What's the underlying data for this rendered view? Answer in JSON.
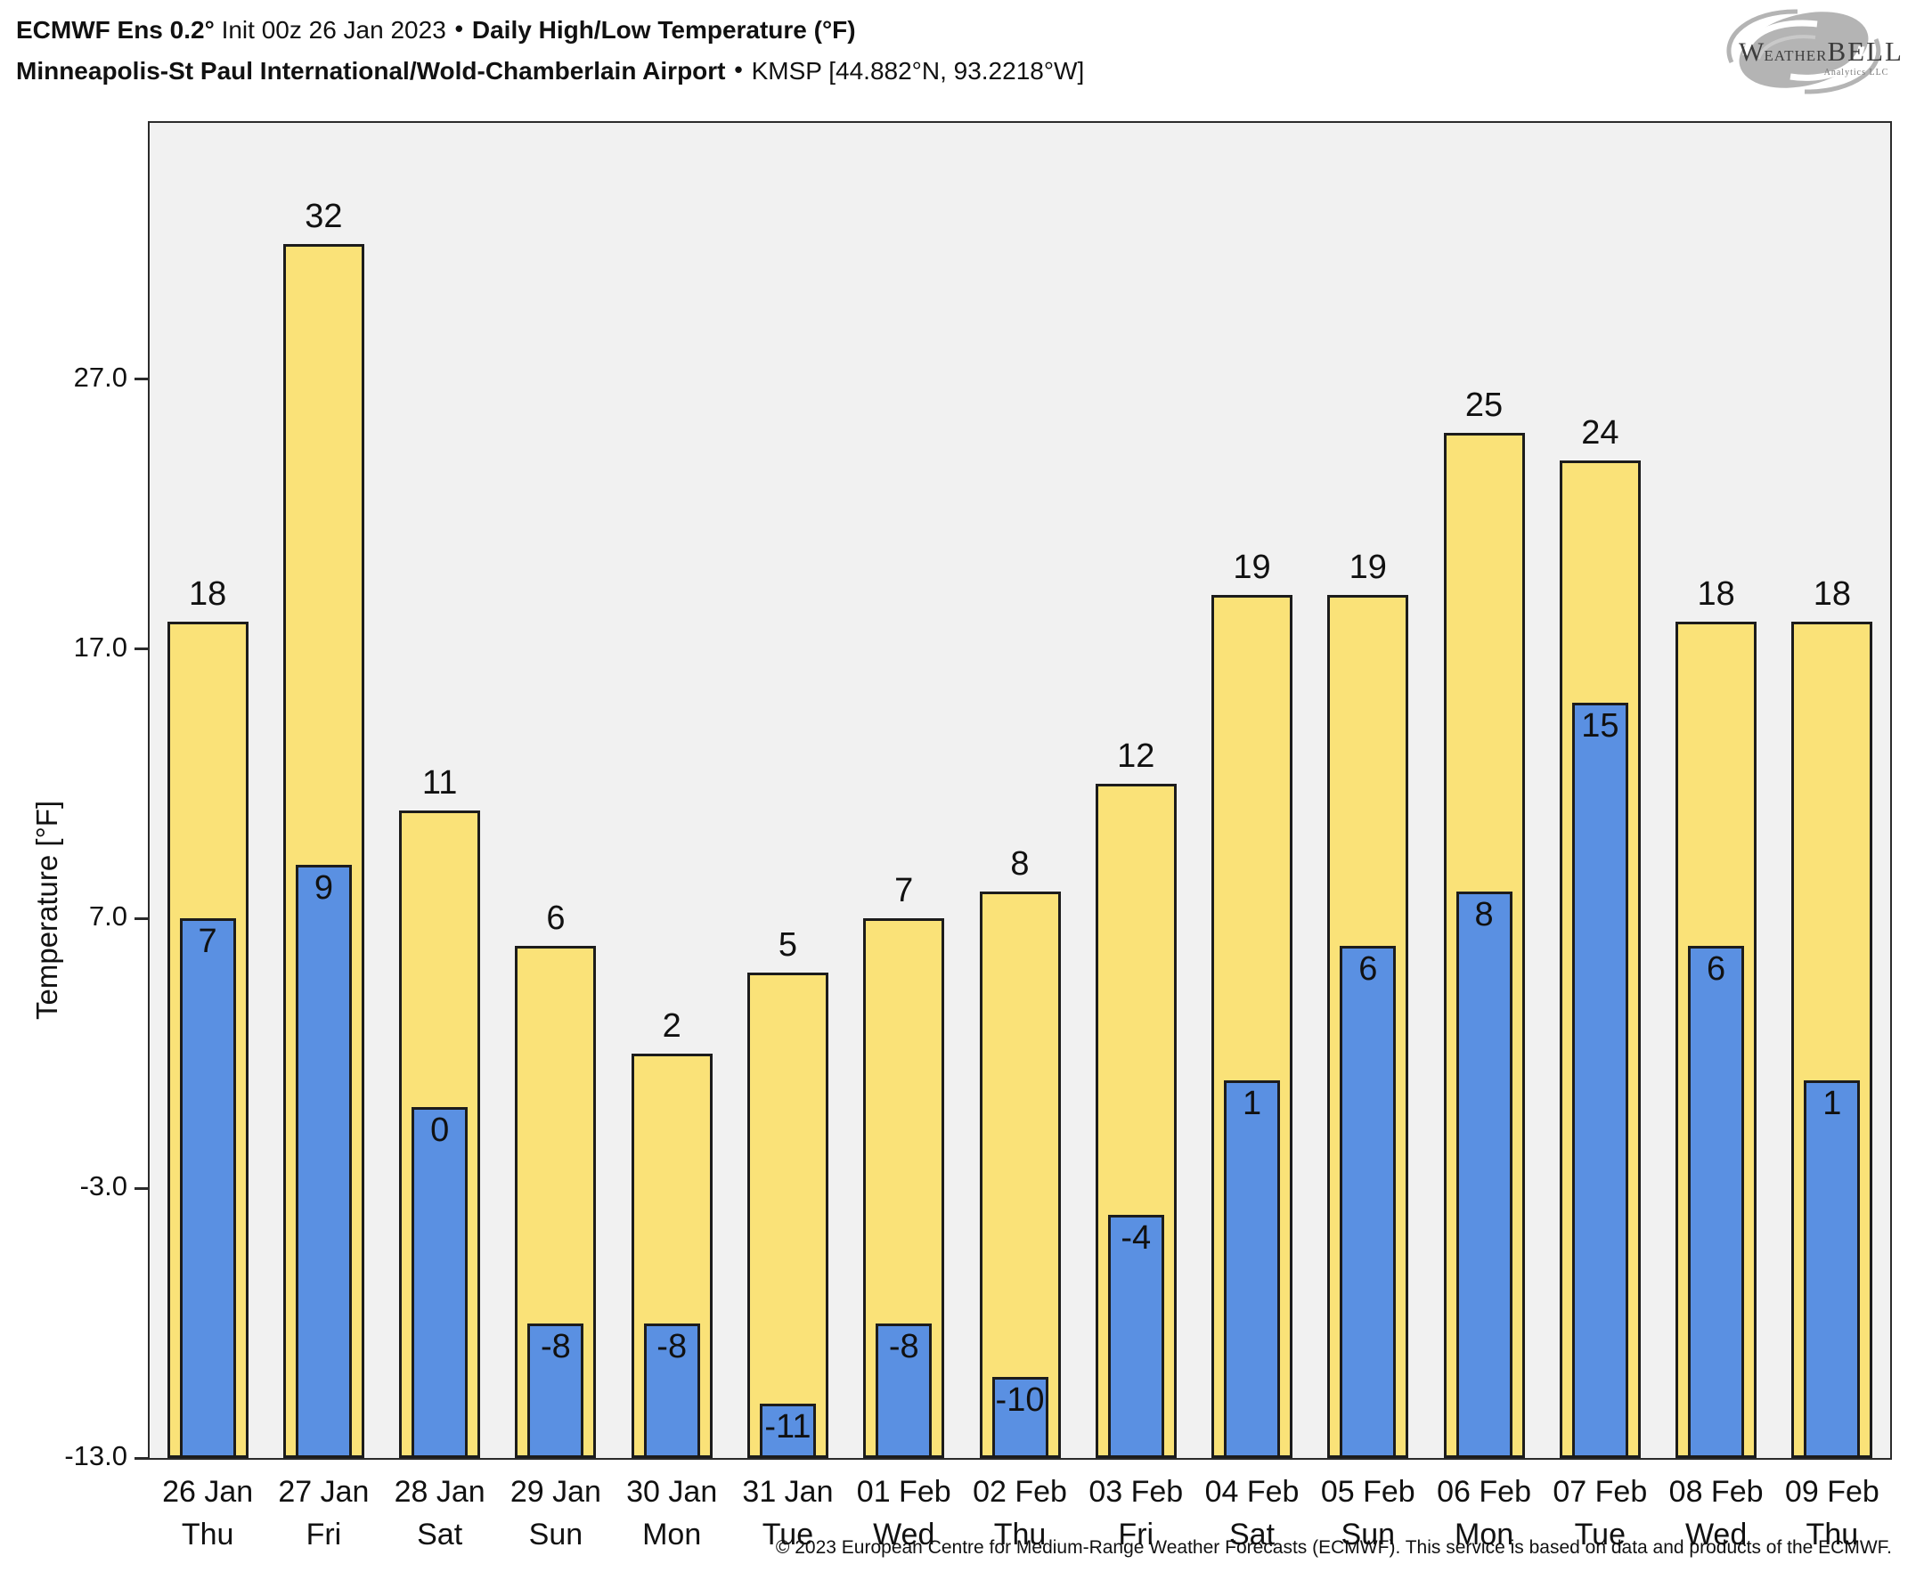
{
  "header": {
    "line1": {
      "bold1": "ECMWF Ens 0.2°",
      "regular": " Init 00z 26 Jan 2023",
      "separator": "•",
      "bold2": "Daily High/Low Temperature (°F)"
    },
    "line2": {
      "bold": "Minneapolis-St Paul International/Wold-Chamberlain Airport",
      "separator": "•",
      "regular": "KMSP [44.882°N, 93.2218°W]"
    }
  },
  "logo": {
    "w": "W",
    "eather": "EATHER",
    "bell": "BELL",
    "subtitle": "Analytics LLC"
  },
  "footer": "© 2023 European Centre for Medium-Range Weather Forecasts (ECMWF). This service is based on data and products of the ECMWF.",
  "chart_data": {
    "type": "bar",
    "title": "ECMWF Ens 0.2° Init 00z 26 Jan 2023 • Daily High/Low Temperature (°F)",
    "subtitle": "Minneapolis-St Paul International/Wold-Chamberlain Airport • KMSP [44.882°N, 93.2218°W]",
    "xlabel": "",
    "ylabel": "Temperature [°F]",
    "ylim": [
      -13,
      36.5
    ],
    "grid": false,
    "legend": "none",
    "plot_background": "#f1f1f1",
    "bar_border_color": "#1c1c1c",
    "yticks": [
      {
        "value": 27.0,
        "label": "27.0"
      },
      {
        "value": 17.0,
        "label": "17.0"
      },
      {
        "value": 7.0,
        "label": "7.0"
      },
      {
        "value": -3.0,
        "label": "-3.0"
      },
      {
        "value": -13.0,
        "label": "-13.0"
      }
    ],
    "categories": [
      {
        "date": "26 Jan",
        "day": "Thu"
      },
      {
        "date": "27 Jan",
        "day": "Fri"
      },
      {
        "date": "28 Jan",
        "day": "Sat"
      },
      {
        "date": "29 Jan",
        "day": "Sun"
      },
      {
        "date": "30 Jan",
        "day": "Mon"
      },
      {
        "date": "31 Jan",
        "day": "Tue"
      },
      {
        "date": "01 Feb",
        "day": "Wed"
      },
      {
        "date": "02 Feb",
        "day": "Thu"
      },
      {
        "date": "03 Feb",
        "day": "Fri"
      },
      {
        "date": "04 Feb",
        "day": "Sat"
      },
      {
        "date": "05 Feb",
        "day": "Sun"
      },
      {
        "date": "06 Feb",
        "day": "Mon"
      },
      {
        "date": "07 Feb",
        "day": "Tue"
      },
      {
        "date": "08 Feb",
        "day": "Wed"
      },
      {
        "date": "09 Feb",
        "day": "Thu"
      }
    ],
    "series": [
      {
        "name": "Daily High",
        "color": "#FAE278",
        "values": [
          18,
          32,
          11,
          6,
          2,
          5,
          7,
          8,
          12,
          19,
          19,
          25,
          24,
          18,
          18
        ]
      },
      {
        "name": "Daily Low",
        "color": "#5A90E2",
        "values": [
          7,
          9,
          0,
          -8,
          -8,
          -11,
          -8,
          -10,
          -4,
          1,
          6,
          8,
          15,
          6,
          1
        ]
      }
    ]
  }
}
